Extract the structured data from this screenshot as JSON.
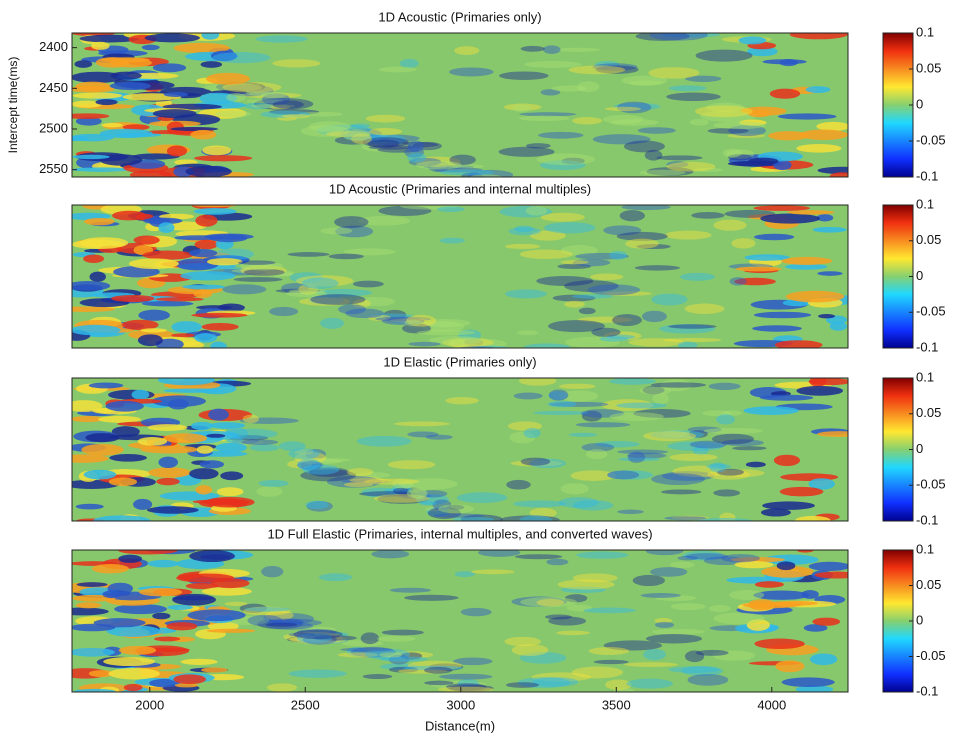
{
  "chart_data": [
    {
      "type": "heatmap",
      "title": "1D Acoustic (Primaries only)",
      "ylabel": "Intercept time(ms)",
      "xlim": [
        1750,
        4245
      ],
      "ylim": [
        2382,
        2559
      ],
      "y_reversed": true,
      "yticks": [
        2400,
        2450,
        2500,
        2550
      ],
      "clim": [
        -0.1,
        0.1
      ],
      "cticks": [
        0.1,
        0.05,
        0,
        -0.05,
        -0.1
      ],
      "colormap": "jet"
    },
    {
      "type": "heatmap",
      "title": "1D Acoustic (Primaries and internal multiples)",
      "xlim": [
        1750,
        4245
      ],
      "clim": [
        -0.1,
        0.1
      ],
      "cticks": [
        0.1,
        0.05,
        0,
        -0.05,
        -0.1
      ],
      "colormap": "jet"
    },
    {
      "type": "heatmap",
      "title": "1D Elastic (Primaries only)",
      "xlim": [
        1750,
        4245
      ],
      "clim": [
        -0.1,
        0.1
      ],
      "cticks": [
        0.1,
        0.05,
        0,
        -0.05,
        -0.1
      ],
      "colormap": "jet"
    },
    {
      "type": "heatmap",
      "title": "1D Full Elastic (Primaries, internal multiples, and converted waves)",
      "xlabel": "Distance(m)",
      "xlim": [
        1750,
        4245
      ],
      "xticks": [
        2000,
        2500,
        3000,
        3500,
        4000
      ],
      "clim": [
        -0.1,
        0.1
      ],
      "cticks": [
        0.1,
        0.05,
        0,
        -0.05,
        -0.1
      ],
      "colormap": "jet"
    }
  ]
}
